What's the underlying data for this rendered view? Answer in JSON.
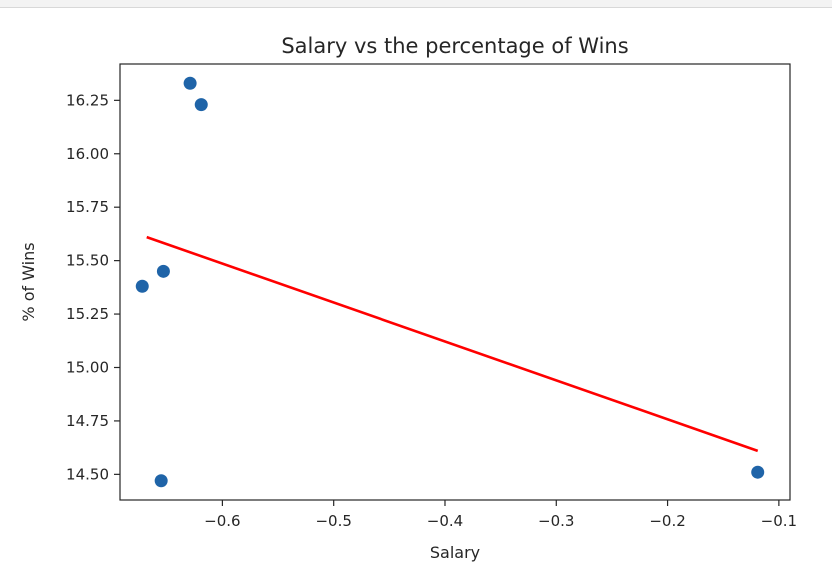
{
  "chart_data": {
    "type": "scatter",
    "title": "Salary vs the percentage of Wins",
    "xlabel": "Salary",
    "ylabel": "% of Wins",
    "xlim": [
      -0.692,
      -0.09
    ],
    "ylim": [
      14.38,
      16.42
    ],
    "xticks": [
      -0.6,
      -0.5,
      -0.4,
      -0.3,
      -0.2,
      -0.1
    ],
    "xtick_labels": [
      "−0.6",
      "−0.5",
      "−0.4",
      "−0.3",
      "−0.2",
      "−0.1"
    ],
    "yticks": [
      14.5,
      14.75,
      15.0,
      15.25,
      15.5,
      15.75,
      16.0,
      16.25
    ],
    "ytick_labels": [
      "14.50",
      "14.75",
      "15.00",
      "15.25",
      "15.50",
      "15.75",
      "16.00",
      "16.25"
    ],
    "points": [
      {
        "x": -0.629,
        "y": 16.33
      },
      {
        "x": -0.619,
        "y": 16.23
      },
      {
        "x": -0.653,
        "y": 15.45
      },
      {
        "x": -0.672,
        "y": 15.38
      },
      {
        "x": -0.655,
        "y": 14.47
      },
      {
        "x": -0.119,
        "y": 14.51
      }
    ],
    "trendline": {
      "x": [
        -0.668,
        -0.119
      ],
      "y": [
        15.61,
        14.61
      ]
    },
    "grid": false,
    "colors": {
      "points": "#1f64a8",
      "trendline": "#ff0000",
      "axes": "#262626"
    }
  }
}
